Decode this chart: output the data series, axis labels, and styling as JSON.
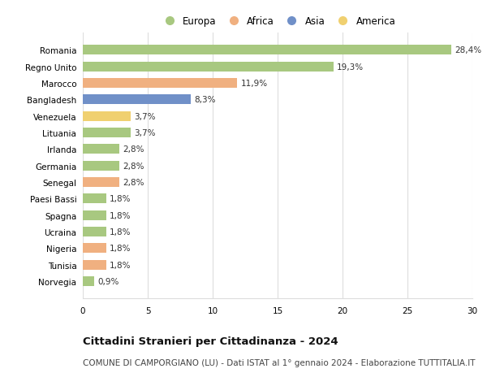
{
  "countries": [
    "Romania",
    "Regno Unito",
    "Marocco",
    "Bangladesh",
    "Venezuela",
    "Lituania",
    "Irlanda",
    "Germania",
    "Senegal",
    "Paesi Bassi",
    "Spagna",
    "Ucraina",
    "Nigeria",
    "Tunisia",
    "Norvegia"
  ],
  "values": [
    28.4,
    19.3,
    11.9,
    8.3,
    3.7,
    3.7,
    2.8,
    2.8,
    2.8,
    1.8,
    1.8,
    1.8,
    1.8,
    1.8,
    0.9
  ],
  "labels": [
    "28,4%",
    "19,3%",
    "11,9%",
    "8,3%",
    "3,7%",
    "3,7%",
    "2,8%",
    "2,8%",
    "2,8%",
    "1,8%",
    "1,8%",
    "1,8%",
    "1,8%",
    "1,8%",
    "0,9%"
  ],
  "continents": [
    "Europa",
    "Europa",
    "Africa",
    "Asia",
    "America",
    "Europa",
    "Europa",
    "Europa",
    "Africa",
    "Europa",
    "Europa",
    "Europa",
    "Africa",
    "Africa",
    "Europa"
  ],
  "colors": {
    "Europa": "#a8c880",
    "Africa": "#f0b080",
    "Asia": "#7090c8",
    "America": "#f0d070"
  },
  "legend_order": [
    "Europa",
    "Africa",
    "Asia",
    "America"
  ],
  "xlim": [
    0,
    30
  ],
  "xticks": [
    0,
    5,
    10,
    15,
    20,
    25,
    30
  ],
  "title": "Cittadini Stranieri per Cittadinanza - 2024",
  "subtitle": "COMUNE DI CAMPORGIANO (LU) - Dati ISTAT al 1° gennaio 2024 - Elaborazione TUTTITALIA.IT",
  "background_color": "#ffffff",
  "bar_height": 0.6,
  "grid_color": "#dddddd",
  "title_fontsize": 9.5,
  "subtitle_fontsize": 7.5,
  "label_fontsize": 7.5,
  "tick_fontsize": 7.5,
  "legend_fontsize": 8.5
}
